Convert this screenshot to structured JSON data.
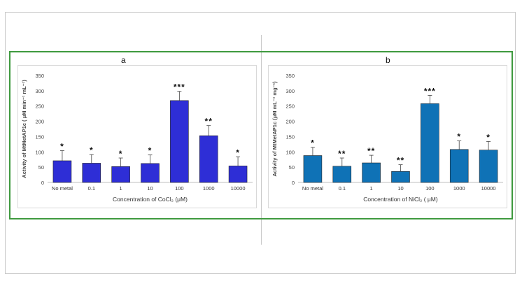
{
  "panels": [
    {
      "label": "a"
    },
    {
      "label": "b"
    }
  ],
  "chart_data": [
    {
      "type": "bar",
      "categories": [
        "No metal",
        "0.1",
        "1",
        "10",
        "100",
        "1000",
        "10000"
      ],
      "series": [
        {
          "values": [
            71,
            63,
            52,
            62,
            268,
            153,
            54
          ],
          "errors": [
            33,
            28,
            28,
            28,
            30,
            33,
            30
          ],
          "significance": [
            "*",
            "*",
            "*",
            "*",
            "***",
            "**",
            "*"
          ],
          "color": "#2e2ed6"
        }
      ],
      "xlabel": "Concentration of CoCl₂ (μM)",
      "ylabel": "Activity of MtMetAP1c ( μM min⁻¹ mL⁻¹)",
      "ylim": [
        0,
        350
      ],
      "yticks": [
        0,
        50,
        100,
        150,
        200,
        250,
        300,
        350
      ],
      "grid": false
    },
    {
      "type": "bar",
      "categories": [
        "No metal",
        "0.1",
        "1",
        "10",
        "100",
        "1000",
        "10000"
      ],
      "series": [
        {
          "values": [
            88,
            53,
            64,
            36,
            258,
            108,
            106
          ],
          "errors": [
            27,
            27,
            25,
            22,
            27,
            28,
            28
          ],
          "significance": [
            "*",
            "**",
            "**",
            "**",
            "***",
            "*",
            "*"
          ],
          "color": "#0f72b6"
        }
      ],
      "xlabel": "Concentration of NiCl₂ ( μM)",
      "ylabel": "Activity of MtMetAP1c (μM mL⁻¹ mg⁻¹)",
      "ylim": [
        0,
        350
      ],
      "yticks": [
        0,
        50,
        100,
        150,
        200,
        250,
        300,
        350
      ],
      "grid": false
    }
  ]
}
